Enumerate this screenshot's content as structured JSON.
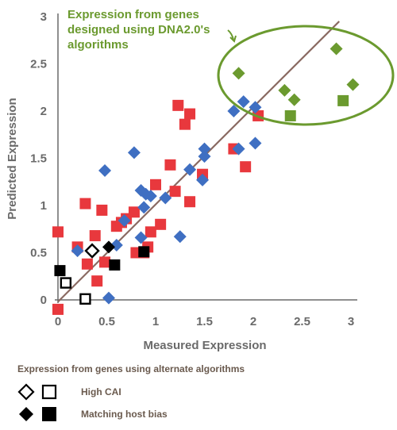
{
  "chart_data": {
    "type": "scatter",
    "title": "",
    "xlabel": "Measured Expression",
    "ylabel": "Predicted Expression",
    "xlim": [
      0,
      3
    ],
    "ylim": [
      0,
      3
    ],
    "xticks": [
      "0",
      "0.5",
      "1",
      "1.5",
      "2",
      "2.5",
      "3"
    ],
    "yticks": [
      "0",
      "0.5",
      "1",
      "1.5",
      "2",
      "2.5",
      "3"
    ],
    "diagonal_line": true,
    "colors": {
      "red": "#e8383d",
      "blue": "#3f6fc2",
      "green": "#6b9a2f",
      "black": "#000000"
    },
    "annotation": "Expression from genes designed using DNA2.0's algorithms",
    "series": [
      {
        "marker": "square",
        "color": "#e8383d",
        "points": [
          [
            0,
            0.72
          ],
          [
            0,
            -0.1
          ],
          [
            0.2,
            0.56
          ],
          [
            0.28,
            1.02
          ],
          [
            0.3,
            0.38
          ],
          [
            0.38,
            0.68
          ],
          [
            0.4,
            0.2
          ],
          [
            0.45,
            0.95
          ],
          [
            0.48,
            0.4
          ],
          [
            0.6,
            0.78
          ],
          [
            0.65,
            0.82
          ],
          [
            0.7,
            0.86
          ],
          [
            0.78,
            0.93
          ],
          [
            0.8,
            0.5
          ],
          [
            0.88,
            0.5
          ],
          [
            0.92,
            0.56
          ],
          [
            0.95,
            0.72
          ],
          [
            1.0,
            1.22
          ],
          [
            1.05,
            0.8
          ],
          [
            1.15,
            1.43
          ],
          [
            1.2,
            1.15
          ],
          [
            1.23,
            2.06
          ],
          [
            1.3,
            1.86
          ],
          [
            1.35,
            1.97
          ],
          [
            1.35,
            1.04
          ],
          [
            1.48,
            1.33
          ],
          [
            1.8,
            1.6
          ],
          [
            1.92,
            1.41
          ],
          [
            2.05,
            1.95
          ]
        ]
      },
      {
        "marker": "diamond",
        "color": "#3f6fc2",
        "points": [
          [
            0.2,
            0.52
          ],
          [
            0.48,
            1.37
          ],
          [
            0.52,
            0.02
          ],
          [
            0.6,
            0.58
          ],
          [
            0.68,
            0.84
          ],
          [
            0.78,
            1.56
          ],
          [
            0.85,
            1.16
          ],
          [
            0.85,
            0.66
          ],
          [
            0.88,
            0.98
          ],
          [
            0.9,
            1.12
          ],
          [
            0.95,
            1.1
          ],
          [
            1.1,
            1.08
          ],
          [
            1.25,
            0.67
          ],
          [
            1.35,
            1.38
          ],
          [
            1.48,
            1.27
          ],
          [
            1.5,
            1.52
          ],
          [
            1.5,
            1.6
          ],
          [
            1.8,
            2.0
          ],
          [
            1.85,
            1.6
          ],
          [
            1.9,
            2.1
          ],
          [
            2.02,
            2.04
          ],
          [
            2.02,
            1.66
          ]
        ]
      },
      {
        "marker": "diamond",
        "color": "#6b9a2f",
        "points": [
          [
            1.85,
            2.4
          ],
          [
            2.32,
            2.22
          ],
          [
            2.42,
            2.12
          ],
          [
            2.85,
            2.66
          ],
          [
            3.02,
            2.28
          ]
        ]
      },
      {
        "marker": "square",
        "color": "#6b9a2f",
        "points": [
          [
            2.38,
            1.95
          ],
          [
            2.92,
            2.11
          ]
        ]
      },
      {
        "marker": "diamond",
        "color": "#000000",
        "filled": false,
        "points": [
          [
            0.35,
            0.52
          ]
        ]
      },
      {
        "marker": "square",
        "color": "#000000",
        "filled": false,
        "points": [
          [
            0.08,
            0.18
          ],
          [
            0.28,
            0.01
          ]
        ]
      },
      {
        "marker": "diamond",
        "color": "#000000",
        "filled": true,
        "points": [
          [
            0.52,
            0.56
          ]
        ]
      },
      {
        "marker": "square",
        "color": "#000000",
        "filled": true,
        "points": [
          [
            0.02,
            0.31
          ],
          [
            0.58,
            0.37
          ],
          [
            0.88,
            0.51
          ]
        ]
      }
    ]
  },
  "annotation_lines": [
    "Expression from genes",
    "designed using DNA2.0's",
    "algorithms"
  ],
  "legend": {
    "title": "Expression from genes using alternate algorithms",
    "items": [
      {
        "label": "High CAI",
        "filled": false
      },
      {
        "label": "Matching host bias",
        "filled": true
      }
    ]
  }
}
